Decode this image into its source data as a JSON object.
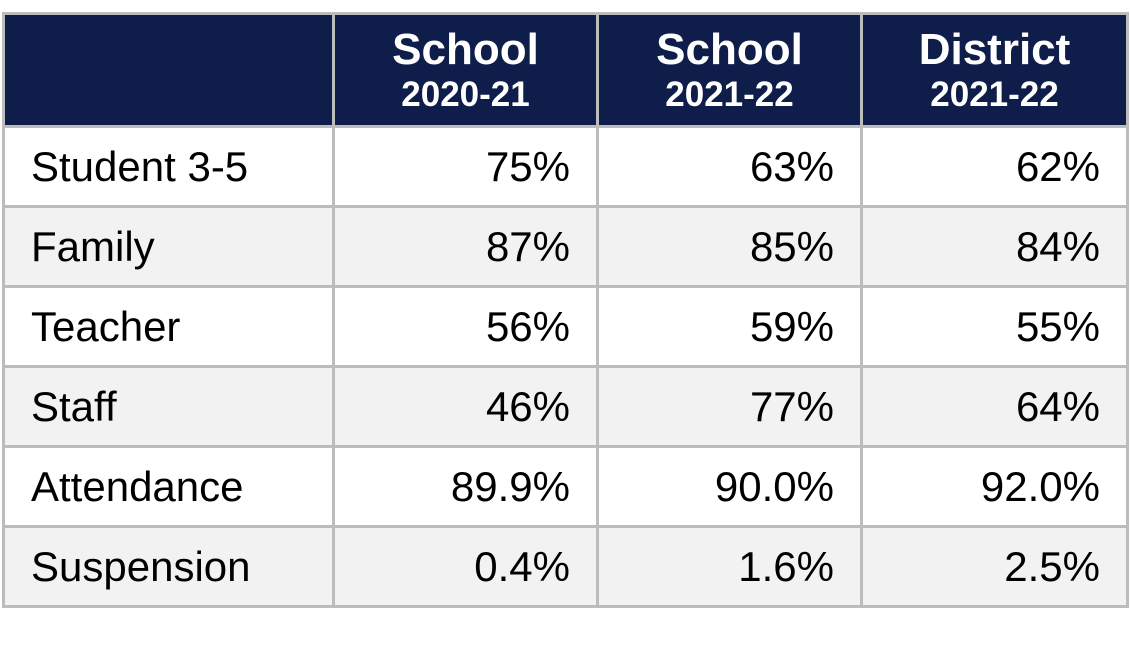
{
  "table": {
    "columns": [
      {
        "line1": "",
        "line2": ""
      },
      {
        "line1": "School",
        "line2": "2020-21"
      },
      {
        "line1": "School",
        "line2": "2021-22"
      },
      {
        "line1": "District",
        "line2": "2021-22"
      }
    ],
    "rows": [
      {
        "label": "Student 3-5",
        "values": [
          "75%",
          "63%",
          "62%"
        ]
      },
      {
        "label": "Family",
        "values": [
          "87%",
          "85%",
          "84%"
        ]
      },
      {
        "label": "Teacher",
        "values": [
          "56%",
          "59%",
          "55%"
        ]
      },
      {
        "label": "Staff",
        "values": [
          "46%",
          "77%",
          "64%"
        ]
      },
      {
        "label": "Attendance",
        "values": [
          "89.9%",
          "90.0%",
          "92.0%"
        ]
      },
      {
        "label": "Suspension",
        "values": [
          "0.4%",
          "1.6%",
          "2.5%"
        ]
      }
    ]
  },
  "colors": {
    "header_bg": "#0f1d4a",
    "header_text": "#ffffff",
    "border": "#bcbcbc",
    "alt_row": "#f2f2f2"
  }
}
